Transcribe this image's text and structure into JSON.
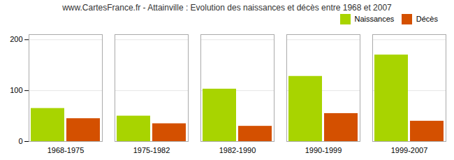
{
  "chart_data": {
    "type": "bar",
    "title": "www.CartesFrance.fr - Attainville : Evolution des naissances et décès entre 1968 et 2007",
    "categories": [
      "1968-1975",
      "1975-1982",
      "1982-1990",
      "1990-1999",
      "1999-2007"
    ],
    "series": [
      {
        "name": "Naissances",
        "color": "#a8d400",
        "values": [
          65,
          50,
          103,
          128,
          170
        ]
      },
      {
        "name": "Décès",
        "color": "#d45000",
        "values": [
          45,
          35,
          30,
          55,
          40
        ]
      }
    ],
    "ylim": [
      0,
      210
    ],
    "yticks": [
      0,
      100,
      200
    ],
    "grid": true,
    "legend": "upper right"
  }
}
